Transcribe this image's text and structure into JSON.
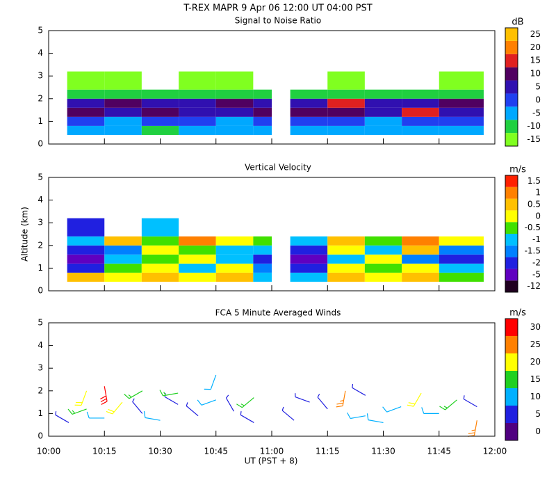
{
  "title": "T-REX  MAPR  9 Apr 06  12:00 UT  04:00  PST",
  "chart_data": [
    {
      "type": "heatmap",
      "title": "Signal to Noise Ratio",
      "xlim": [
        10,
        12
      ],
      "ylim": [
        0,
        5
      ],
      "yticks": [
        0,
        1,
        2,
        3,
        4,
        5
      ],
      "x_bins": [
        10.083,
        10.25,
        10.417,
        10.583,
        10.75,
        10.917,
        11.0,
        11.083,
        11.25,
        11.417,
        11.583,
        11.75,
        11.95
      ],
      "y_bins": [
        0.4,
        0.8,
        1.2,
        1.6,
        2.0,
        2.4,
        3.2
      ],
      "z": [
        [
          -5,
          -5,
          -10,
          -5,
          -5,
          -5,
          null,
          -5,
          -5,
          -5,
          -5,
          -5
        ],
        [
          0,
          -5,
          0,
          0,
          -5,
          0,
          null,
          0,
          0,
          -5,
          0,
          0
        ],
        [
          10,
          5,
          10,
          5,
          5,
          10,
          null,
          10,
          10,
          5,
          15,
          5
        ],
        [
          5,
          10,
          5,
          5,
          10,
          5,
          null,
          5,
          15,
          5,
          5,
          10
        ],
        [
          -10,
          -10,
          -10,
          -10,
          -10,
          -10,
          null,
          -10,
          -10,
          -10,
          -10,
          -10
        ],
        [
          -15,
          -15,
          null,
          -15,
          -15,
          null,
          null,
          null,
          -15,
          null,
          null,
          -15
        ]
      ],
      "colorbar": {
        "unit": "dB",
        "ticks": [
          -15,
          -10,
          -5,
          0,
          5,
          10,
          15,
          20,
          25
        ],
        "colors": [
          "#80ff20",
          "#20d040",
          "#00a8ff",
          "#2040f0",
          "#3010b0",
          "#500060",
          "#e02020",
          "#ff8000",
          "#ffc000"
        ]
      }
    },
    {
      "type": "heatmap",
      "title": "Vertical Velocity",
      "ylabel": "Altitude (km)",
      "xlim": [
        10,
        12
      ],
      "ylim": [
        0,
        5
      ],
      "yticks": [
        0,
        1,
        2,
        3,
        4,
        5
      ],
      "x_bins": [
        10.083,
        10.25,
        10.417,
        10.583,
        10.75,
        10.917,
        11.0,
        11.083,
        11.25,
        11.417,
        11.583,
        11.75,
        11.95
      ],
      "y_bins": [
        0.4,
        0.8,
        1.2,
        1.6,
        2.0,
        2.4,
        3.2
      ],
      "z": [
        [
          0.5,
          0,
          0.5,
          0,
          0.5,
          -1,
          null,
          -1,
          0.5,
          0,
          0.5,
          -0.5
        ],
        [
          -2,
          -0.5,
          0,
          -1,
          0,
          -1.5,
          null,
          -2,
          0,
          -0.5,
          0,
          -1
        ],
        [
          -5,
          -1,
          -0.5,
          0,
          -1,
          -2,
          null,
          -5,
          -1,
          0,
          -1.5,
          -2
        ],
        [
          -2,
          -1.5,
          0,
          -0.5,
          -1,
          -1,
          null,
          -2,
          0,
          -1,
          0.5,
          -1.5
        ],
        [
          -1,
          0.5,
          -0.5,
          1,
          0,
          -0.5,
          null,
          -1,
          0.5,
          -0.5,
          1,
          0
        ],
        [
          -2,
          null,
          -1,
          null,
          null,
          null,
          null,
          null,
          null,
          null,
          null,
          null
        ]
      ],
      "colorbar": {
        "unit": "m/s",
        "ticks": [
          -12,
          -5,
          -2,
          -1.5,
          -1,
          -0.5,
          0,
          0.5,
          1,
          1.5
        ],
        "colors": [
          "#200020",
          "#6000c0",
          "#2020e0",
          "#0080ff",
          "#00c0ff",
          "#40e000",
          "#ffff00",
          "#ffc000",
          "#ff8000",
          "#ff2000"
        ]
      }
    },
    {
      "type": "barbs",
      "title": "FCA 5 Minute Averaged Winds",
      "xlabel": "UT  (PST + 8)",
      "xlim": [
        10,
        12
      ],
      "ylim": [
        0,
        5
      ],
      "yticks": [
        0,
        1,
        2,
        3,
        4,
        5
      ],
      "xticks": [
        {
          "value": 10,
          "label": "10:00"
        },
        {
          "value": 10.25,
          "label": "10:15"
        },
        {
          "value": 10.5,
          "label": "10:30"
        },
        {
          "value": 10.75,
          "label": "10:45"
        },
        {
          "value": 11,
          "label": "11:00"
        },
        {
          "value": 11.25,
          "label": "11:15"
        },
        {
          "value": 11.5,
          "label": "11:30"
        },
        {
          "value": 11.75,
          "label": "11:45"
        },
        {
          "value": 12,
          "label": "12:00"
        }
      ],
      "x": [
        10.09,
        10.17,
        10.17,
        10.25,
        10.25,
        10.33,
        10.42,
        10.42,
        10.5,
        10.58,
        10.58,
        10.67,
        10.75,
        10.75,
        10.83,
        10.92,
        10.92,
        11.1,
        11.17,
        11.25,
        11.33,
        11.42,
        11.42,
        11.5,
        11.58,
        11.67,
        11.75,
        11.83,
        11.92,
        11.92
      ],
      "y": [
        0.6,
        1.2,
        2.0,
        0.8,
        2.2,
        1.5,
        1.0,
        2.0,
        0.7,
        1.4,
        1.9,
        0.9,
        1.6,
        2.7,
        1.1,
        0.6,
        1.7,
        0.7,
        1.5,
        1.2,
        2.0,
        0.9,
        1.8,
        0.6,
        1.3,
        1.9,
        1.0,
        1.6,
        0.7,
        1.3
      ],
      "speed": [
        5,
        15,
        20,
        10,
        30,
        20,
        5,
        15,
        10,
        5,
        15,
        5,
        10,
        10,
        5,
        5,
        15,
        5,
        5,
        5,
        25,
        10,
        5,
        10,
        10,
        20,
        10,
        15,
        25,
        5
      ],
      "direction": [
        300,
        250,
        200,
        270,
        170,
        220,
        320,
        240,
        280,
        300,
        260,
        310,
        250,
        200,
        330,
        300,
        230,
        310,
        290,
        320,
        190,
        260,
        300,
        280,
        250,
        210,
        270,
        230,
        190,
        300
      ],
      "colorbar": {
        "unit": "m/s",
        "ticks": [
          0,
          5,
          10,
          15,
          20,
          25,
          30
        ],
        "colors": [
          "#500080",
          "#2020e0",
          "#00b0ff",
          "#20d020",
          "#ffff00",
          "#ff8000",
          "#ff0000"
        ]
      }
    }
  ]
}
